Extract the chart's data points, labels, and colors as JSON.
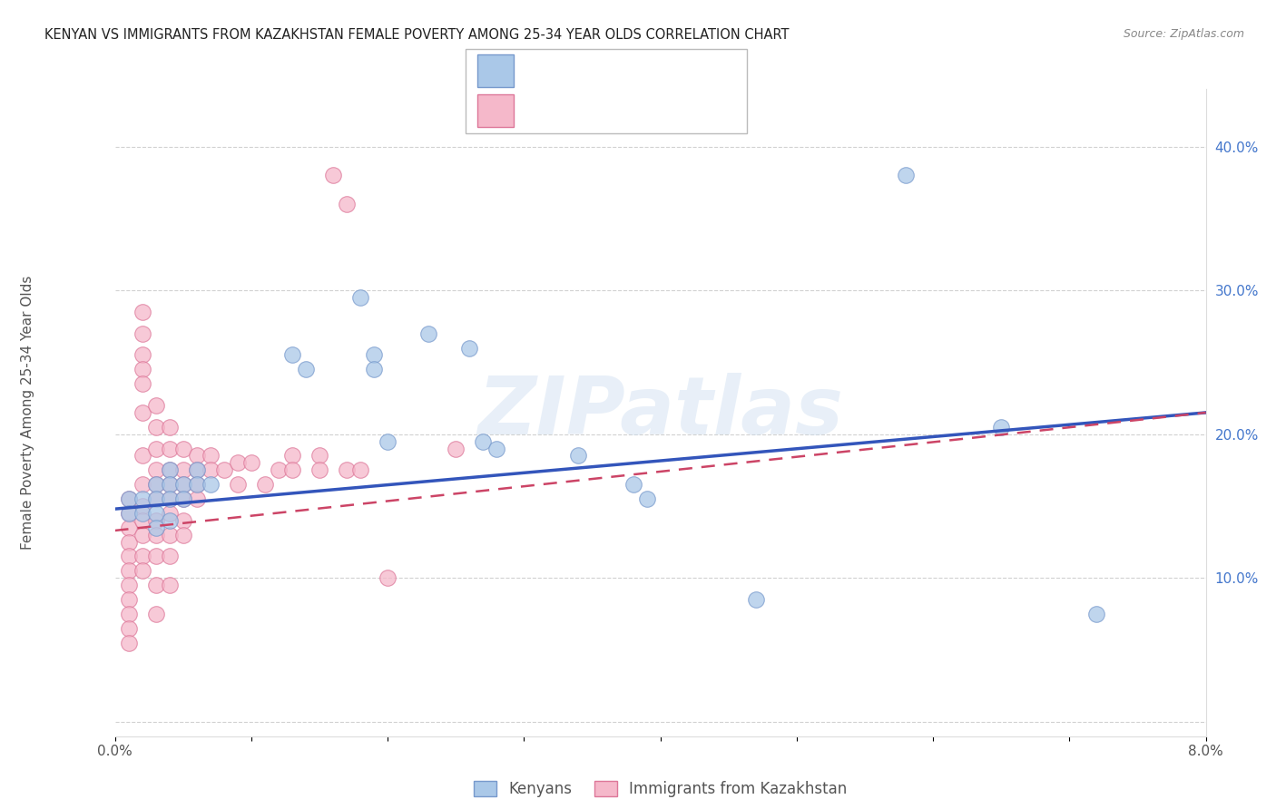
{
  "title": "KENYAN VS IMMIGRANTS FROM KAZAKHSTAN FEMALE POVERTY AMONG 25-34 YEAR OLDS CORRELATION CHART",
  "source": "Source: ZipAtlas.com",
  "ylabel": "Female Poverty Among 25-34 Year Olds",
  "xlim": [
    0.0,
    0.08
  ],
  "ylim": [
    -0.01,
    0.44
  ],
  "kenyan_color": "#aac8e8",
  "kazakh_color": "#f5b8ca",
  "kenyan_edge": "#7799cc",
  "kazakh_edge": "#dd7799",
  "trend_blue": "#3355bb",
  "trend_pink": "#cc4466",
  "watermark": "ZIPatlas",
  "kenyan_x": [
    0.001,
    0.001,
    0.002,
    0.002,
    0.003,
    0.003,
    0.003,
    0.003,
    0.004,
    0.004,
    0.004,
    0.004,
    0.005,
    0.005,
    0.006,
    0.006,
    0.007,
    0.013,
    0.014,
    0.018,
    0.019,
    0.019,
    0.02,
    0.023,
    0.026,
    0.027,
    0.028,
    0.034,
    0.038,
    0.039,
    0.047,
    0.058,
    0.065,
    0.072
  ],
  "kenyan_y": [
    0.155,
    0.145,
    0.155,
    0.145,
    0.165,
    0.155,
    0.145,
    0.135,
    0.175,
    0.165,
    0.155,
    0.14,
    0.165,
    0.155,
    0.175,
    0.165,
    0.165,
    0.255,
    0.245,
    0.295,
    0.255,
    0.245,
    0.195,
    0.27,
    0.26,
    0.195,
    0.19,
    0.185,
    0.165,
    0.155,
    0.085,
    0.38,
    0.205,
    0.075
  ],
  "kazakh_x": [
    0.001,
    0.001,
    0.001,
    0.001,
    0.001,
    0.001,
    0.001,
    0.001,
    0.001,
    0.001,
    0.001,
    0.002,
    0.002,
    0.002,
    0.002,
    0.002,
    0.002,
    0.002,
    0.002,
    0.002,
    0.002,
    0.002,
    0.002,
    0.002,
    0.003,
    0.003,
    0.003,
    0.003,
    0.003,
    0.003,
    0.003,
    0.003,
    0.003,
    0.003,
    0.003,
    0.004,
    0.004,
    0.004,
    0.004,
    0.004,
    0.004,
    0.004,
    0.004,
    0.004,
    0.005,
    0.005,
    0.005,
    0.005,
    0.005,
    0.005,
    0.006,
    0.006,
    0.006,
    0.006,
    0.007,
    0.007,
    0.008,
    0.009,
    0.009,
    0.01,
    0.011,
    0.012,
    0.013,
    0.013,
    0.015,
    0.015,
    0.016,
    0.017,
    0.017,
    0.018,
    0.02,
    0.025
  ],
  "kazakh_y": [
    0.155,
    0.145,
    0.135,
    0.125,
    0.115,
    0.105,
    0.095,
    0.085,
    0.075,
    0.065,
    0.055,
    0.285,
    0.27,
    0.255,
    0.245,
    0.235,
    0.215,
    0.185,
    0.165,
    0.15,
    0.14,
    0.13,
    0.115,
    0.105,
    0.22,
    0.205,
    0.19,
    0.175,
    0.165,
    0.155,
    0.14,
    0.13,
    0.115,
    0.095,
    0.075,
    0.205,
    0.19,
    0.175,
    0.165,
    0.155,
    0.145,
    0.13,
    0.115,
    0.095,
    0.19,
    0.175,
    0.165,
    0.155,
    0.14,
    0.13,
    0.185,
    0.175,
    0.165,
    0.155,
    0.185,
    0.175,
    0.175,
    0.18,
    0.165,
    0.18,
    0.165,
    0.175,
    0.185,
    0.175,
    0.185,
    0.175,
    0.38,
    0.36,
    0.175,
    0.175,
    0.1,
    0.19
  ],
  "trend_blue_x0": 0.0,
  "trend_blue_y0": 0.148,
  "trend_blue_x1": 0.08,
  "trend_blue_y1": 0.215,
  "trend_pink_x0": 0.0,
  "trend_pink_y0": 0.133,
  "trend_pink_x1": 0.08,
  "trend_pink_y1": 0.215
}
